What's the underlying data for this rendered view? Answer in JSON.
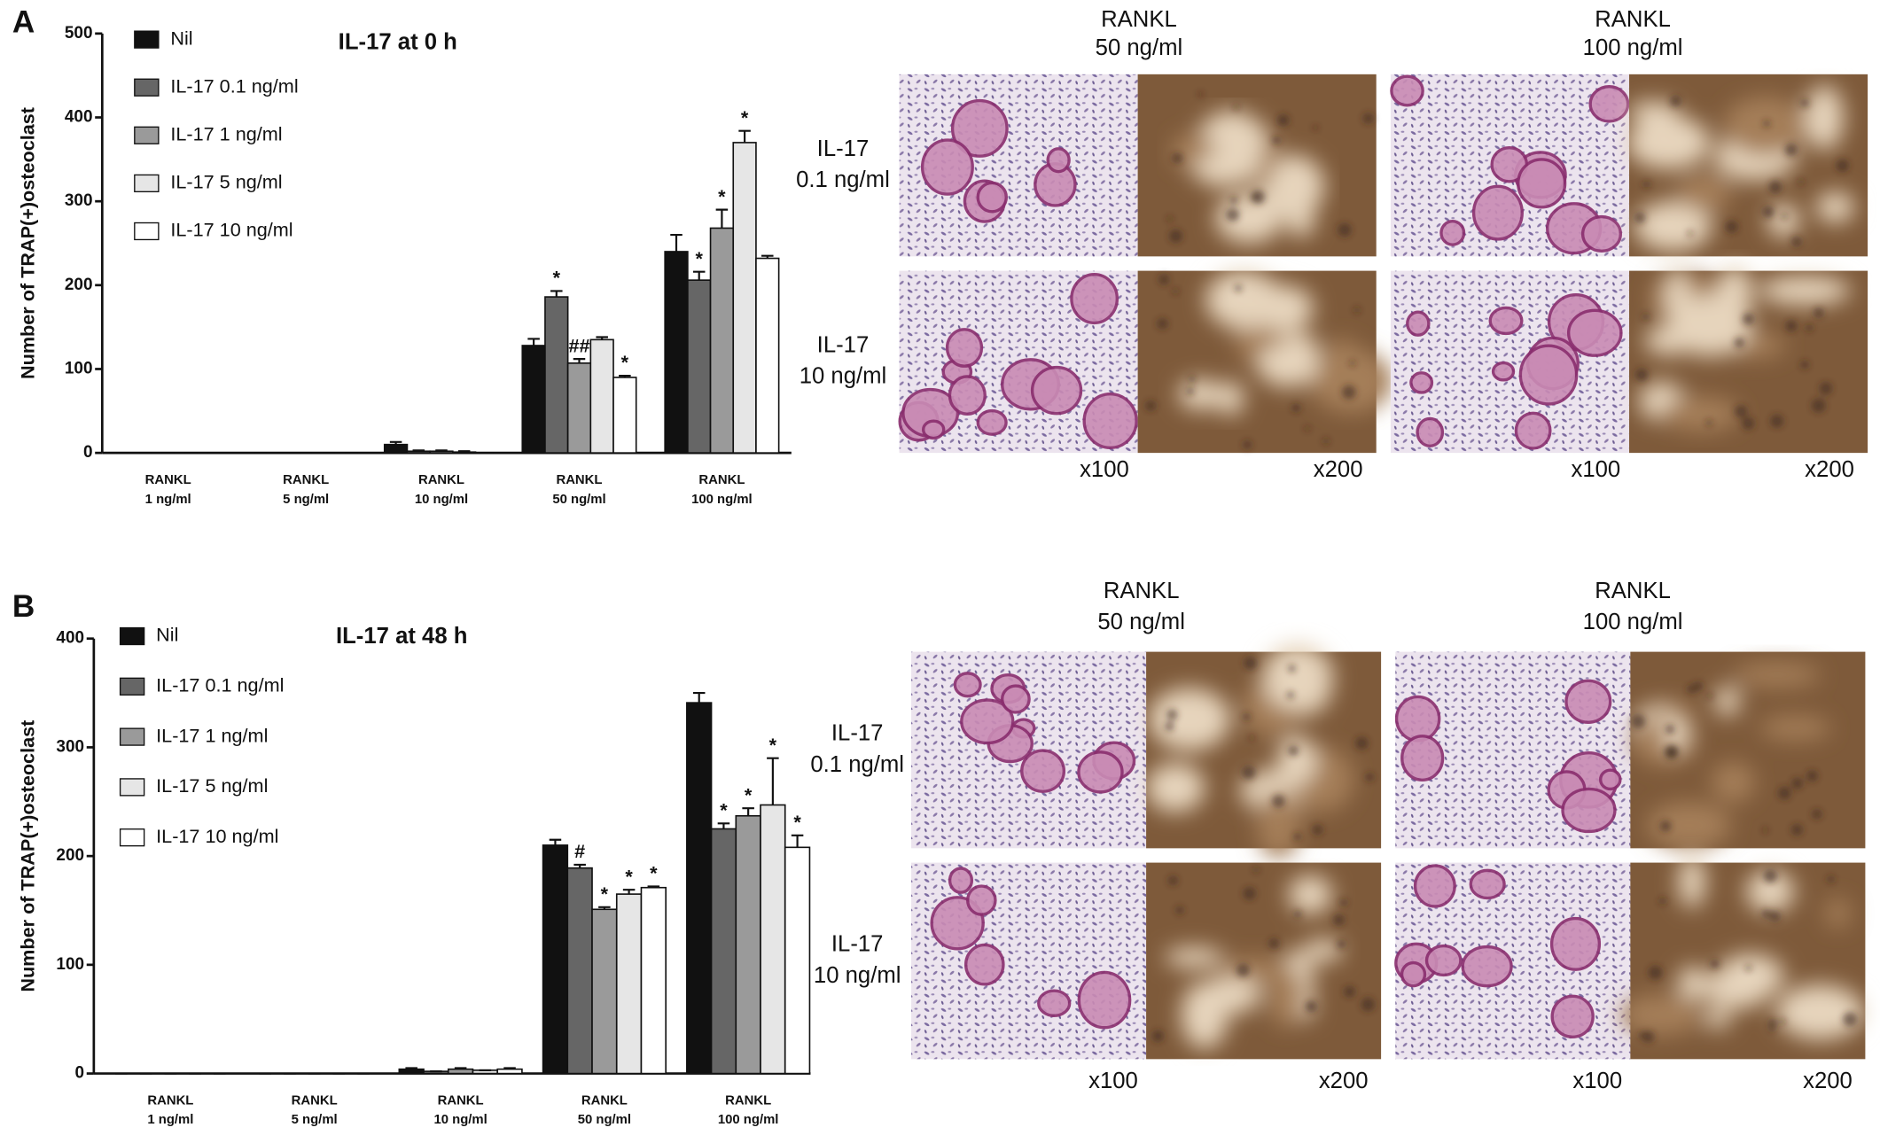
{
  "chart_data": [
    {
      "type": "bar",
      "panel": "A",
      "title": "IL-17 at 0 h",
      "y_label": "Number of TRAP(+)osteoclast",
      "categories": [
        [
          "RANKL",
          "1 ng/ml"
        ],
        [
          "RANKL",
          "5 ng/ml"
        ],
        [
          "RANKL",
          "10 ng/ml"
        ],
        [
          "RANKL",
          "50 ng/ml"
        ],
        [
          "RANKL",
          "100 ng/ml"
        ]
      ],
      "ylim": [
        0,
        500
      ],
      "yticks": [
        0,
        100,
        200,
        300,
        400,
        500
      ],
      "series": [
        {
          "name": "Nil",
          "color": "#111111",
          "values": [
            0,
            0,
            10,
            128,
            240
          ],
          "errors": [
            0,
            0,
            3,
            8,
            20
          ],
          "annotations": [
            null,
            null,
            null,
            null,
            null
          ]
        },
        {
          "name": "IL-17 0.1 ng/ml",
          "color": "#666666",
          "values": [
            0,
            0,
            2,
            186,
            206
          ],
          "errors": [
            0,
            0,
            1,
            7,
            10
          ],
          "annotations": [
            null,
            null,
            null,
            "*",
            "*"
          ]
        },
        {
          "name": "IL-17 1 ng/ml",
          "color": "#9a9a9a",
          "values": [
            0,
            0,
            2,
            107,
            268
          ],
          "errors": [
            0,
            0,
            1,
            5,
            22
          ],
          "annotations": [
            null,
            null,
            null,
            "##",
            "*"
          ]
        },
        {
          "name": "IL-17 5 ng/ml",
          "color": "#e6e6e6",
          "values": [
            0,
            0,
            1,
            135,
            370
          ],
          "errors": [
            0,
            0,
            1,
            3,
            14
          ],
          "annotations": [
            null,
            null,
            null,
            null,
            "*"
          ]
        },
        {
          "name": "IL-17 10 ng/ml",
          "color": "#ffffff",
          "values": [
            0,
            0,
            0,
            90,
            232
          ],
          "errors": [
            0,
            0,
            0,
            2,
            3
          ],
          "annotations": [
            null,
            null,
            null,
            "*",
            null
          ]
        }
      ],
      "micrographs": {
        "columns": [
          [
            "RANKL",
            "50 ng/ml"
          ],
          [
            "RANKL",
            "100 ng/ml"
          ]
        ],
        "rows": [
          [
            "IL-17",
            "0.1 ng/ml"
          ],
          [
            "IL-17",
            "10 ng/ml"
          ]
        ],
        "magnifications": [
          "x100",
          "x200"
        ]
      }
    },
    {
      "type": "bar",
      "panel": "B",
      "title": "IL-17 at 48 h",
      "y_label": "Number of TRAP(+)osteoclast",
      "categories": [
        [
          "RANKL",
          "1 ng/ml"
        ],
        [
          "RANKL",
          "5 ng/ml"
        ],
        [
          "RANKL",
          "10 ng/ml"
        ],
        [
          "RANKL",
          "50 ng/ml"
        ],
        [
          "RANKL",
          "100 ng/ml"
        ]
      ],
      "ylim": [
        0,
        400
      ],
      "yticks": [
        0,
        100,
        200,
        300,
        400
      ],
      "series": [
        {
          "name": "Nil",
          "color": "#111111",
          "values": [
            0,
            0,
            4,
            210,
            341
          ],
          "errors": [
            0,
            0,
            1,
            5,
            9
          ],
          "annotations": [
            null,
            null,
            null,
            null,
            null
          ]
        },
        {
          "name": "IL-17 0.1 ng/ml",
          "color": "#666666",
          "values": [
            0,
            0,
            2,
            189,
            225
          ],
          "errors": [
            0,
            0,
            0,
            3,
            5
          ],
          "annotations": [
            null,
            null,
            null,
            "#",
            "*"
          ]
        },
        {
          "name": "IL-17 1 ng/ml",
          "color": "#9a9a9a",
          "values": [
            0,
            0,
            4,
            151,
            237
          ],
          "errors": [
            0,
            0,
            1,
            2,
            7
          ],
          "annotations": [
            null,
            null,
            null,
            "*",
            "*"
          ]
        },
        {
          "name": "IL-17 5 ng/ml",
          "color": "#e6e6e6",
          "values": [
            0,
            0,
            3,
            165,
            247
          ],
          "errors": [
            0,
            0,
            0,
            4,
            43
          ],
          "annotations": [
            null,
            null,
            null,
            "*",
            "*"
          ]
        },
        {
          "name": "IL-17 10 ng/ml",
          "color": "#ffffff",
          "values": [
            0,
            0,
            4,
            171,
            208
          ],
          "errors": [
            0,
            0,
            1,
            1,
            11
          ],
          "annotations": [
            null,
            null,
            null,
            "*",
            "*"
          ]
        }
      ],
      "micrographs": {
        "columns": [
          [
            "RANKL",
            "50 ng/ml"
          ],
          [
            "RANKL",
            "100 ng/ml"
          ]
        ],
        "rows": [
          [
            "IL-17",
            "0.1 ng/ml"
          ],
          [
            "IL-17",
            "10 ng/ml"
          ]
        ],
        "magnifications": [
          "x100",
          "x200"
        ]
      }
    }
  ]
}
